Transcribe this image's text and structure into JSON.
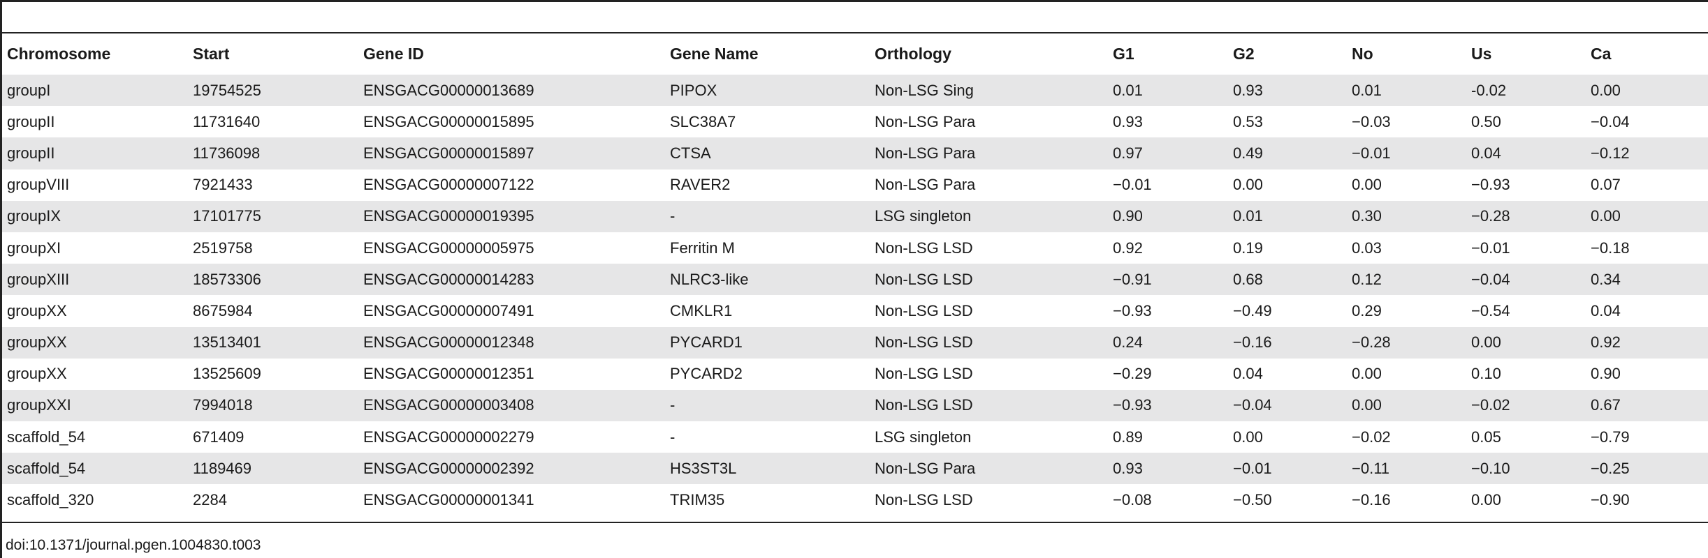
{
  "table": {
    "columns": [
      "Chromosome",
      "Start",
      "Gene ID",
      "Gene Name",
      "Orthology",
      "G1",
      "G2",
      "No",
      "Us",
      "Ca"
    ],
    "rows": [
      [
        "groupI",
        "19754525",
        "ENSGACG00000013689",
        "PIPOX",
        "Non-LSG Sing",
        "0.01",
        "0.93",
        "0.01",
        "-0.02",
        "0.00"
      ],
      [
        "groupII",
        "11731640",
        "ENSGACG00000015895",
        "SLC38A7",
        "Non-LSG Para",
        "0.93",
        "0.53",
        "−0.03",
        "0.50",
        "−0.04"
      ],
      [
        "groupII",
        "11736098",
        "ENSGACG00000015897",
        "CTSA",
        "Non-LSG Para",
        "0.97",
        "0.49",
        "−0.01",
        "0.04",
        "−0.12"
      ],
      [
        "groupVIII",
        "7921433",
        "ENSGACG00000007122",
        "RAVER2",
        "Non-LSG Para",
        "−0.01",
        "0.00",
        "0.00",
        "−0.93",
        "0.07"
      ],
      [
        "groupIX",
        "17101775",
        "ENSGACG00000019395",
        "-",
        "LSG singleton",
        "0.90",
        "0.01",
        "0.30",
        "−0.28",
        "0.00"
      ],
      [
        "groupXI",
        "2519758",
        "ENSGACG00000005975",
        "Ferritin M",
        "Non-LSG LSD",
        "0.92",
        "0.19",
        "0.03",
        "−0.01",
        "−0.18"
      ],
      [
        "groupXIII",
        "18573306",
        "ENSGACG00000014283",
        "NLRC3-like",
        "Non-LSG LSD",
        "−0.91",
        "0.68",
        "0.12",
        "−0.04",
        "0.34"
      ],
      [
        "groupXX",
        "8675984",
        "ENSGACG00000007491",
        "CMKLR1",
        "Non-LSG LSD",
        "−0.93",
        "−0.49",
        "0.29",
        "−0.54",
        "0.04"
      ],
      [
        "groupXX",
        "13513401",
        "ENSGACG00000012348",
        "PYCARD1",
        "Non-LSG LSD",
        "0.24",
        "−0.16",
        "−0.28",
        "0.00",
        "0.92"
      ],
      [
        "groupXX",
        "13525609",
        "ENSGACG00000012351",
        "PYCARD2",
        "Non-LSG LSD",
        "−0.29",
        "0.04",
        "0.00",
        "0.10",
        "0.90"
      ],
      [
        "groupXXI",
        "7994018",
        "ENSGACG00000003408",
        "-",
        "Non-LSG LSD",
        "−0.93",
        "−0.04",
        "0.00",
        "−0.02",
        "0.67"
      ],
      [
        "scaffold_54",
        "671409",
        "ENSGACG00000002279",
        "-",
        "LSG singleton",
        "0.89",
        "0.00",
        "−0.02",
        "0.05",
        "−0.79"
      ],
      [
        "scaffold_54",
        "1189469",
        "ENSGACG00000002392",
        "HS3ST3L",
        "Non-LSG Para",
        "0.93",
        "−0.01",
        "−0.11",
        "−0.10",
        "−0.25"
      ],
      [
        "scaffold_320",
        "2284",
        "ENSGACG00000001341",
        "TRIM35",
        "Non-LSG LSD",
        "−0.08",
        "−0.50",
        "−0.16",
        "0.00",
        "−0.90"
      ]
    ]
  },
  "caption": "doi:10.1371/journal.pgen.1004830.t003",
  "colors": {
    "row_shade": "#e6e6e7",
    "rule": "#222222"
  }
}
